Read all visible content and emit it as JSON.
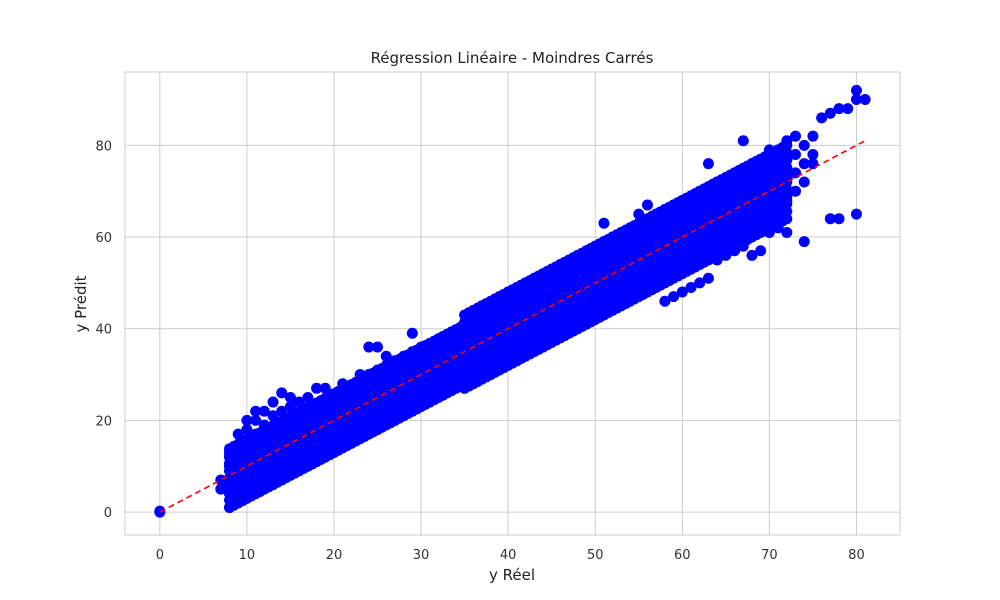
{
  "chart_data": {
    "type": "scatter",
    "title": "Régression Linéaire - Moindres Carrés",
    "xlabel": "y Réel",
    "ylabel": "y Prédit",
    "xlim": [
      -4,
      85
    ],
    "ylim": [
      -5,
      96
    ],
    "xticks": [
      0,
      10,
      20,
      30,
      40,
      50,
      60,
      70,
      80
    ],
    "yticks": [
      0,
      20,
      40,
      60,
      80
    ],
    "grid": true,
    "point_color": "#0000ff",
    "line_color": "#ff0000",
    "ideal_line": {
      "x": [
        0,
        81
      ],
      "y": [
        0,
        81
      ],
      "style": "dashed"
    },
    "points": [
      [
        0,
        0.2
      ],
      [
        0,
        0.0
      ],
      [
        7,
        5
      ],
      [
        7,
        7
      ],
      [
        7.5,
        6
      ],
      [
        8,
        1
      ],
      [
        8,
        4
      ],
      [
        8,
        7
      ],
      [
        8,
        10
      ],
      [
        8,
        12
      ],
      [
        8,
        13
      ],
      [
        9,
        2
      ],
      [
        9,
        5
      ],
      [
        9,
        8
      ],
      [
        9,
        11
      ],
      [
        9,
        14
      ],
      [
        9,
        17
      ],
      [
        10,
        6
      ],
      [
        10,
        9
      ],
      [
        10,
        12
      ],
      [
        10,
        15
      ],
      [
        10,
        18
      ],
      [
        10,
        20
      ],
      [
        11,
        8
      ],
      [
        11,
        11
      ],
      [
        11,
        14
      ],
      [
        11,
        17
      ],
      [
        11,
        20
      ],
      [
        11,
        22
      ],
      [
        12,
        6
      ],
      [
        12,
        10
      ],
      [
        12,
        13
      ],
      [
        12,
        16
      ],
      [
        12,
        19
      ],
      [
        12,
        22
      ],
      [
        13,
        8
      ],
      [
        13,
        12
      ],
      [
        13,
        15
      ],
      [
        13,
        18
      ],
      [
        13,
        21
      ],
      [
        13,
        24
      ],
      [
        14,
        9
      ],
      [
        14,
        13
      ],
      [
        14,
        16
      ],
      [
        14,
        19
      ],
      [
        14,
        22
      ],
      [
        14,
        26
      ],
      [
        15,
        10
      ],
      [
        15,
        13
      ],
      [
        15,
        17
      ],
      [
        15,
        20
      ],
      [
        15,
        23
      ],
      [
        15,
        25
      ],
      [
        16,
        11
      ],
      [
        16,
        14
      ],
      [
        16,
        18
      ],
      [
        16,
        21
      ],
      [
        16,
        24
      ],
      [
        17,
        12
      ],
      [
        17,
        15
      ],
      [
        17,
        19
      ],
      [
        17,
        22
      ],
      [
        17,
        25
      ],
      [
        18,
        12
      ],
      [
        18,
        16
      ],
      [
        18,
        20
      ],
      [
        18,
        23
      ],
      [
        18,
        27
      ],
      [
        19,
        13
      ],
      [
        19,
        17
      ],
      [
        19,
        21
      ],
      [
        19,
        24
      ],
      [
        19,
        27
      ],
      [
        20,
        15
      ],
      [
        20,
        18
      ],
      [
        20,
        22
      ],
      [
        20,
        25
      ],
      [
        21,
        16
      ],
      [
        21,
        19
      ],
      [
        21,
        23
      ],
      [
        21,
        26
      ],
      [
        21,
        28
      ],
      [
        22,
        17
      ],
      [
        22,
        20
      ],
      [
        22,
        24
      ],
      [
        22,
        27
      ],
      [
        23,
        18
      ],
      [
        23,
        21
      ],
      [
        23,
        25
      ],
      [
        23,
        28
      ],
      [
        23,
        30
      ],
      [
        24,
        19
      ],
      [
        24,
        22
      ],
      [
        24,
        26
      ],
      [
        24,
        30
      ],
      [
        24,
        36
      ],
      [
        25,
        20
      ],
      [
        25,
        23
      ],
      [
        25,
        27
      ],
      [
        25,
        31
      ],
      [
        25,
        36
      ],
      [
        26,
        20
      ],
      [
        26,
        24
      ],
      [
        26,
        28
      ],
      [
        26,
        32
      ],
      [
        26,
        34
      ],
      [
        27,
        21
      ],
      [
        27,
        25
      ],
      [
        27,
        29
      ],
      [
        27,
        33
      ],
      [
        28,
        22
      ],
      [
        28,
        26
      ],
      [
        28,
        30
      ],
      [
        28,
        34
      ],
      [
        29,
        23
      ],
      [
        29,
        27
      ],
      [
        29,
        31
      ],
      [
        29,
        35
      ],
      [
        29,
        39
      ],
      [
        30,
        24
      ],
      [
        30,
        28
      ],
      [
        30,
        32
      ],
      [
        30,
        36
      ],
      [
        31,
        25
      ],
      [
        31,
        29
      ],
      [
        31,
        33
      ],
      [
        31,
        36
      ],
      [
        32,
        27
      ],
      [
        32,
        30
      ],
      [
        32,
        34
      ],
      [
        32,
        37
      ],
      [
        33,
        28
      ],
      [
        33,
        31
      ],
      [
        33,
        35
      ],
      [
        33,
        38
      ],
      [
        34,
        29
      ],
      [
        34,
        32
      ],
      [
        34,
        36
      ],
      [
        34,
        39
      ],
      [
        35,
        30
      ],
      [
        35,
        33
      ],
      [
        35,
        37
      ],
      [
        35,
        40
      ],
      [
        36,
        32
      ],
      [
        36,
        35
      ],
      [
        36,
        38
      ],
      [
        36,
        41
      ],
      [
        37,
        33
      ],
      [
        37,
        36
      ],
      [
        37,
        39
      ],
      [
        37,
        42
      ],
      [
        37,
        45
      ],
      [
        38,
        34
      ],
      [
        38,
        37
      ],
      [
        38,
        40
      ],
      [
        38,
        43
      ],
      [
        39,
        35
      ],
      [
        39,
        38
      ],
      [
        39,
        41
      ],
      [
        39,
        44
      ],
      [
        39,
        47
      ],
      [
        40,
        36
      ],
      [
        40,
        39
      ],
      [
        40,
        42
      ],
      [
        40,
        45
      ],
      [
        40,
        48
      ],
      [
        41,
        37
      ],
      [
        41,
        40
      ],
      [
        41,
        43
      ],
      [
        41,
        46
      ],
      [
        41,
        49
      ],
      [
        42,
        37
      ],
      [
        42,
        41
      ],
      [
        42,
        44
      ],
      [
        42,
        47
      ],
      [
        42,
        50
      ],
      [
        43,
        38
      ],
      [
        43,
        42
      ],
      [
        43,
        45
      ],
      [
        43,
        48
      ],
      [
        43,
        51
      ],
      [
        44,
        39
      ],
      [
        44,
        43
      ],
      [
        44,
        46
      ],
      [
        44,
        49
      ],
      [
        44,
        52
      ],
      [
        45,
        40
      ],
      [
        45,
        43
      ],
      [
        45,
        47
      ],
      [
        45,
        50
      ],
      [
        45,
        53
      ],
      [
        46,
        41
      ],
      [
        46,
        44
      ],
      [
        46,
        48
      ],
      [
        46,
        51
      ],
      [
        46,
        54
      ],
      [
        47,
        42
      ],
      [
        47,
        45
      ],
      [
        47,
        49
      ],
      [
        47,
        52
      ],
      [
        47,
        55
      ],
      [
        48,
        43
      ],
      [
        48,
        46
      ],
      [
        48,
        50
      ],
      [
        48,
        53
      ],
      [
        48,
        56
      ],
      [
        49,
        44
      ],
      [
        49,
        47
      ],
      [
        49,
        51
      ],
      [
        49,
        54
      ],
      [
        49,
        57
      ],
      [
        50,
        45
      ],
      [
        50,
        48
      ],
      [
        50,
        52
      ],
      [
        50,
        55
      ],
      [
        50,
        58
      ],
      [
        51,
        46
      ],
      [
        51,
        49
      ],
      [
        51,
        53
      ],
      [
        51,
        56
      ],
      [
        51,
        59
      ],
      [
        51,
        63
      ],
      [
        52,
        47
      ],
      [
        52,
        50
      ],
      [
        52,
        54
      ],
      [
        52,
        57
      ],
      [
        52,
        60
      ],
      [
        53,
        47
      ],
      [
        53,
        51
      ],
      [
        53,
        55
      ],
      [
        53,
        58
      ],
      [
        53,
        61
      ],
      [
        54,
        48
      ],
      [
        54,
        52
      ],
      [
        54,
        56
      ],
      [
        54,
        59
      ],
      [
        54,
        62
      ],
      [
        55,
        49
      ],
      [
        55,
        53
      ],
      [
        55,
        57
      ],
      [
        55,
        60
      ],
      [
        55,
        63
      ],
      [
        55,
        65
      ],
      [
        56,
        50
      ],
      [
        56,
        54
      ],
      [
        56,
        58
      ],
      [
        56,
        61
      ],
      [
        56,
        64
      ],
      [
        56,
        67
      ],
      [
        57,
        51
      ],
      [
        57,
        55
      ],
      [
        57,
        58
      ],
      [
        57,
        62
      ],
      [
        57,
        65
      ],
      [
        58,
        46
      ],
      [
        58,
        52
      ],
      [
        58,
        56
      ],
      [
        58,
        59
      ],
      [
        58,
        63
      ],
      [
        58,
        66
      ],
      [
        59,
        47
      ],
      [
        59,
        53
      ],
      [
        59,
        57
      ],
      [
        59,
        60
      ],
      [
        59,
        64
      ],
      [
        59,
        67
      ],
      [
        60,
        48
      ],
      [
        60,
        54
      ],
      [
        60,
        58
      ],
      [
        60,
        61
      ],
      [
        60,
        65
      ],
      [
        60,
        68
      ],
      [
        61,
        49
      ],
      [
        61,
        55
      ],
      [
        61,
        59
      ],
      [
        61,
        62
      ],
      [
        61,
        66
      ],
      [
        62,
        50
      ],
      [
        62,
        56
      ],
      [
        62,
        60
      ],
      [
        62,
        63
      ],
      [
        62,
        67
      ],
      [
        62,
        70
      ],
      [
        63,
        51
      ],
      [
        63,
        57
      ],
      [
        63,
        61
      ],
      [
        63,
        64
      ],
      [
        63,
        68
      ],
      [
        63,
        76
      ],
      [
        64,
        55
      ],
      [
        64,
        58
      ],
      [
        64,
        62
      ],
      [
        64,
        65
      ],
      [
        64,
        69
      ],
      [
        64,
        72
      ],
      [
        65,
        56
      ],
      [
        65,
        59
      ],
      [
        65,
        63
      ],
      [
        65,
        66
      ],
      [
        65,
        70
      ],
      [
        66,
        57
      ],
      [
        66,
        60
      ],
      [
        66,
        64
      ],
      [
        66,
        67
      ],
      [
        66,
        71
      ],
      [
        66,
        74
      ],
      [
        67,
        58
      ],
      [
        67,
        61
      ],
      [
        67,
        65
      ],
      [
        67,
        68
      ],
      [
        67,
        72
      ],
      [
        67,
        75
      ],
      [
        67,
        81
      ],
      [
        68,
        56
      ],
      [
        68,
        62
      ],
      [
        68,
        66
      ],
      [
        68,
        69
      ],
      [
        68,
        73
      ],
      [
        68,
        76
      ],
      [
        69,
        57
      ],
      [
        69,
        63
      ],
      [
        69,
        67
      ],
      [
        69,
        70
      ],
      [
        69,
        74
      ],
      [
        70,
        61
      ],
      [
        70,
        64
      ],
      [
        70,
        68
      ],
      [
        70,
        71
      ],
      [
        70,
        75
      ],
      [
        70,
        79
      ],
      [
        71,
        62
      ],
      [
        71,
        65
      ],
      [
        71,
        69
      ],
      [
        71,
        72
      ],
      [
        71,
        76
      ],
      [
        72,
        61
      ],
      [
        72,
        68
      ],
      [
        72,
        73
      ],
      [
        72,
        77
      ],
      [
        72,
        81
      ],
      [
        73,
        70
      ],
      [
        73,
        74
      ],
      [
        73,
        78
      ],
      [
        73,
        82
      ],
      [
        74,
        59
      ],
      [
        74,
        72
      ],
      [
        74,
        76
      ],
      [
        74,
        80
      ],
      [
        75,
        76
      ],
      [
        75,
        78
      ],
      [
        75,
        82
      ],
      [
        76,
        86
      ],
      [
        77,
        64
      ],
      [
        77,
        87
      ],
      [
        78,
        64
      ],
      [
        78,
        88
      ],
      [
        79,
        88
      ],
      [
        80,
        65
      ],
      [
        80,
        90
      ],
      [
        80,
        92
      ],
      [
        81,
        90
      ]
    ]
  }
}
